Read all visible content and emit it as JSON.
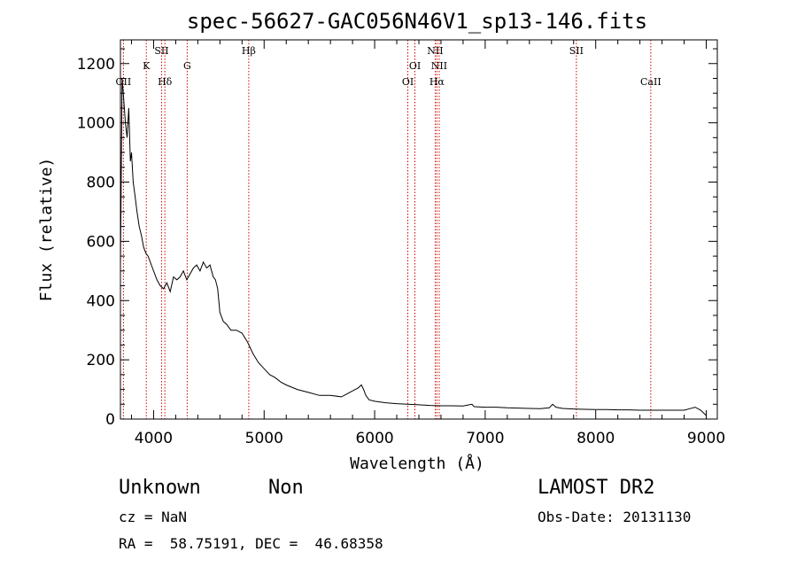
{
  "chart_data": {
    "type": "line",
    "title": "spec-56627-GAC056N46V1_sp13-146.fits",
    "xlabel": "Wavelength (Å)",
    "ylabel": "Flux (relative)",
    "xlim": [
      3700,
      9100
    ],
    "ylim": [
      0,
      1280
    ],
    "xticks": [
      4000,
      5000,
      6000,
      7000,
      8000,
      9000
    ],
    "yticks": [
      0,
      200,
      400,
      600,
      800,
      1000,
      1200
    ],
    "xtick_labels": [
      "4000",
      "5000",
      "6000",
      "7000",
      "8000",
      "9000"
    ],
    "ytick_labels": [
      "0",
      "200",
      "400",
      "600",
      "800",
      "1000",
      "1200"
    ],
    "grid": false,
    "series": [
      {
        "x": [
          3700,
          3715,
          3730,
          3745,
          3760,
          3775,
          3790,
          3800,
          3815,
          3830,
          3850,
          3870,
          3890,
          3910,
          3930,
          3950,
          3970,
          3990,
          4010,
          4030,
          4060,
          4090,
          4120,
          4150,
          4180,
          4210,
          4240,
          4270,
          4300,
          4330,
          4360,
          4390,
          4420,
          4450,
          4480,
          4510,
          4540,
          4560,
          4580,
          4600,
          4630,
          4660,
          4700,
          4750,
          4800,
          4850,
          4900,
          4950,
          5000,
          5050,
          5100,
          5150,
          5200,
          5300,
          5400,
          5500,
          5600,
          5700,
          5750,
          5800,
          5850,
          5880,
          5900,
          5920,
          5950,
          6000,
          6100,
          6200,
          6300,
          6400,
          6500,
          6600,
          6700,
          6800,
          6880,
          6900,
          7000,
          7100,
          7200,
          7300,
          7400,
          7500,
          7580,
          7610,
          7640,
          7700,
          7800,
          7900,
          8000,
          8100,
          8200,
          8300,
          8400,
          8500,
          8600,
          8700,
          8800,
          8850,
          8900,
          8950,
          9000
        ],
        "y": [
          520,
          1150,
          1080,
          1000,
          950,
          1050,
          870,
          900,
          800,
          760,
          700,
          650,
          620,
          580,
          560,
          550,
          530,
          510,
          490,
          470,
          450,
          440,
          460,
          430,
          480,
          470,
          480,
          500,
          470,
          490,
          510,
          520,
          500,
          530,
          510,
          520,
          480,
          470,
          440,
          360,
          330,
          320,
          300,
          300,
          290,
          260,
          220,
          190,
          170,
          150,
          140,
          125,
          115,
          100,
          90,
          80,
          80,
          75,
          85,
          95,
          105,
          115,
          100,
          80,
          65,
          60,
          55,
          52,
          50,
          48,
          46,
          45,
          45,
          44,
          50,
          42,
          40,
          40,
          38,
          37,
          36,
          35,
          38,
          50,
          40,
          36,
          34,
          33,
          32,
          32,
          31,
          31,
          30,
          30,
          30,
          30,
          30,
          35,
          40,
          30,
          12
        ]
      }
    ],
    "lines": [
      {
        "x": 3727,
        "label": "OII",
        "row": 3
      },
      {
        "x": 3934,
        "label": "K",
        "row": 2
      },
      {
        "x": 4072,
        "label": "SII",
        "row": 1
      },
      {
        "x": 4102,
        "label": "Hδ",
        "row": 3
      },
      {
        "x": 4304,
        "label": "G",
        "row": 2
      },
      {
        "x": 4861,
        "label": "Hβ",
        "row": 1
      },
      {
        "x": 6300,
        "label": "OI",
        "row": 3
      },
      {
        "x": 6364,
        "label": "OI",
        "row": 2
      },
      {
        "x": 6548,
        "label": "NII",
        "row": 1
      },
      {
        "x": 6563,
        "label": "Hα",
        "row": 3
      },
      {
        "x": 6584,
        "label": "NII",
        "row": 2
      },
      {
        "x": 7825,
        "label": "SII",
        "row": 1
      },
      {
        "x": 8498,
        "label": "CaII",
        "row": 3
      }
    ]
  },
  "info": {
    "class_label": "Unknown",
    "subclass_label": "Non",
    "survey": "LAMOST DR2",
    "cz": "cz = NaN",
    "obs_date": "Obs-Date: 20131130",
    "radec": "RA =  58.75191, DEC =  46.68358"
  },
  "colors": {
    "spectrum": "#000000",
    "line_markers": "#cc0000",
    "axes": "#000000",
    "background": "#ffffff"
  }
}
